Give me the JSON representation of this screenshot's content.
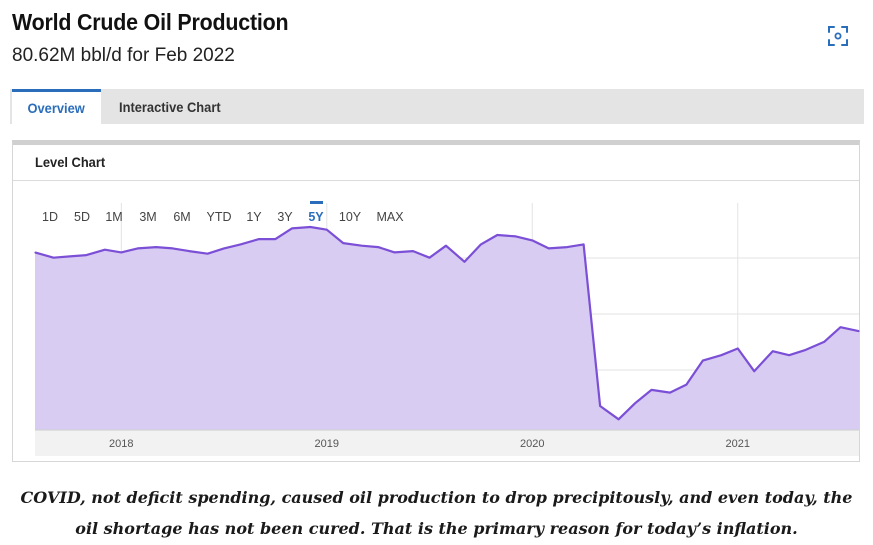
{
  "header": {
    "title": "World Crude Oil Production",
    "subtitle": "80.62M bbl/d for Feb 2022"
  },
  "tabs": [
    {
      "label": "Overview",
      "active": true
    },
    {
      "label": "Interactive Chart",
      "active": false
    }
  ],
  "panel": {
    "title": "Level Chart",
    "ranges": [
      "1D",
      "5D",
      "1M",
      "3M",
      "6M",
      "YTD",
      "1Y",
      "3Y",
      "5Y",
      "10Y",
      "MAX"
    ],
    "selected_range": "5Y"
  },
  "caption": {
    "line1": "COVID, not deficit spending, caused oil production to drop precipitously, and even today, the",
    "line2": "oil shortage has not been cured. That is the primary reason for today’s inflation."
  },
  "colors": {
    "accent": "#2a6ebb",
    "line": "#7b4fd6",
    "fill": "#d9ccf3"
  },
  "icons": {
    "expand": "expand-icon"
  },
  "chart_data": {
    "type": "area",
    "title": "",
    "xlabel": "",
    "ylabel": "",
    "x_tick_labels": [
      "2018",
      "2019",
      "2020",
      "2021"
    ],
    "xlim": [
      2017.58,
      2021.59
    ],
    "ylim": [
      68,
      85
    ],
    "grid": true,
    "y_tick_labels_shown": false,
    "x": [
      2017.58,
      2017.67,
      2017.75,
      2017.83,
      2017.92,
      2018.0,
      2018.08,
      2018.17,
      2018.25,
      2018.33,
      2018.42,
      2018.5,
      2018.58,
      2018.67,
      2018.75,
      2018.83,
      2018.92,
      2019.0,
      2019.08,
      2019.17,
      2019.25,
      2019.33,
      2019.42,
      2019.5,
      2019.58,
      2019.67,
      2019.75,
      2019.83,
      2019.92,
      2020.0,
      2020.08,
      2020.17,
      2020.25,
      2020.33,
      2020.42,
      2020.5,
      2020.58,
      2020.67,
      2020.75,
      2020.83,
      2020.92,
      2021.0,
      2021.08,
      2021.17,
      2021.25,
      2021.33,
      2021.42,
      2021.5,
      2021.59
    ],
    "values": [
      81.3,
      80.9,
      81.0,
      81.1,
      81.5,
      81.3,
      81.6,
      81.7,
      81.6,
      81.4,
      81.2,
      81.6,
      81.9,
      82.3,
      82.3,
      83.1,
      83.2,
      83.0,
      82.0,
      81.8,
      81.7,
      81.3,
      81.4,
      80.9,
      81.8,
      80.6,
      81.9,
      82.6,
      82.5,
      82.2,
      81.6,
      81.7,
      81.9,
      69.8,
      68.8,
      70.0,
      71.0,
      70.8,
      71.4,
      73.2,
      73.6,
      74.1,
      72.4,
      73.9,
      73.6,
      74.0,
      74.6,
      75.7,
      75.4
    ]
  }
}
